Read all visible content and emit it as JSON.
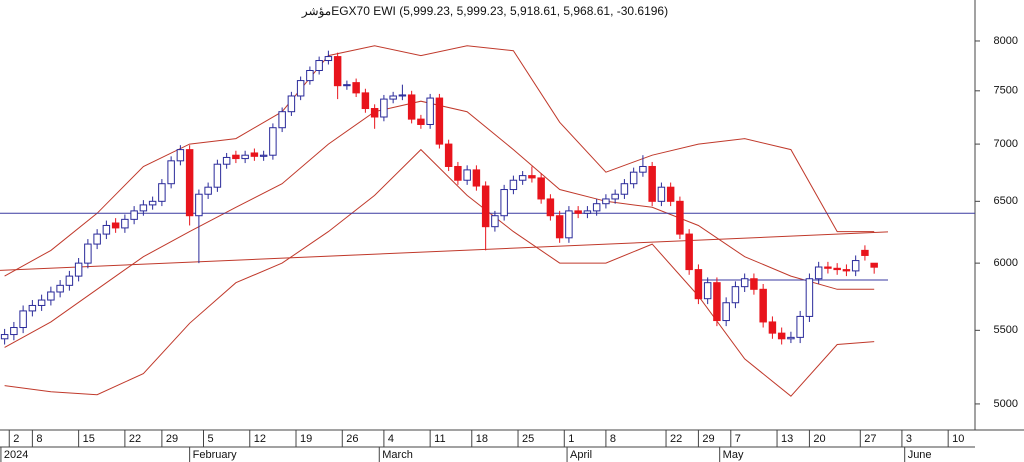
{
  "chart_data": {
    "type": "candlestick",
    "title": "مؤشرEGX70 EWI (5,999.23, 5,999.23, 5,918.61, 5,968.61, -30.6196)",
    "log_scale": true,
    "ylim": [
      4834,
      8436
    ],
    "yticks": [
      5000,
      5500,
      6000,
      6500,
      7000,
      7500,
      8000
    ],
    "xlim": [
      -0.5,
      104.9
    ],
    "xticks": [
      {
        "value": 0.5,
        "label": "2"
      },
      {
        "value": 3,
        "label": "8"
      },
      {
        "value": 8,
        "label": "15"
      },
      {
        "value": 13,
        "label": "22"
      },
      {
        "value": 17,
        "label": "29"
      },
      {
        "value": 21.5,
        "label": "5"
      },
      {
        "value": 26.5,
        "label": "12"
      },
      {
        "value": 31.5,
        "label": "19"
      },
      {
        "value": 36.5,
        "label": "26"
      },
      {
        "value": 41,
        "label": "4"
      },
      {
        "value": 46,
        "label": "11"
      },
      {
        "value": 50.5,
        "label": "18"
      },
      {
        "value": 55.5,
        "label": "25"
      },
      {
        "value": 60.5,
        "label": "1"
      },
      {
        "value": 65,
        "label": "8"
      },
      {
        "value": 71.5,
        "label": "22"
      },
      {
        "value": 75,
        "label": "29"
      },
      {
        "value": 78.5,
        "label": "7"
      },
      {
        "value": 83.5,
        "label": "13"
      },
      {
        "value": 87,
        "label": "20"
      },
      {
        "value": 92.5,
        "label": "27"
      },
      {
        "value": 97,
        "label": "3"
      },
      {
        "value": 102,
        "label": "10"
      }
    ],
    "month_ticks": [
      {
        "value": -0.4,
        "label": "2024"
      },
      {
        "value": 20,
        "label": "February"
      },
      {
        "value": 40.5,
        "label": "March"
      },
      {
        "value": 60.8,
        "label": "April"
      },
      {
        "value": 77.3,
        "label": "May"
      },
      {
        "value": 97.3,
        "label": "June"
      }
    ],
    "up_color": "#2a2a9a",
    "down_color": "#e8141c",
    "open": [
      5440,
      5470,
      5520,
      5640,
      5680,
      5720,
      5780,
      5830,
      5900,
      6000,
      6150,
      6230,
      6320,
      6280,
      6350,
      6420,
      6470,
      6500,
      6650,
      6850,
      6950,
      6380,
      6560,
      6620,
      6820,
      6900,
      6870,
      6920,
      6890,
      6900,
      7150,
      7300,
      7450,
      7600,
      7700,
      7800,
      7840,
      7550,
      7580,
      7480,
      7330,
      7250,
      7420,
      7450,
      7460,
      7230,
      7180,
      7430,
      7000,
      6800,
      6680,
      6770,
      6630,
      6290,
      6380,
      6600,
      6680,
      6720,
      6700,
      6520,
      6380,
      6200,
      6420,
      6400,
      6420,
      6480,
      6520,
      6560,
      6650,
      6750,
      6800,
      6500,
      6620,
      6500,
      6230,
      5950,
      5730,
      5850,
      5570,
      5700,
      5820,
      5880,
      5800,
      5560,
      5480,
      5440,
      5450,
      5600,
      5880,
      5970,
      5960,
      5950,
      5940,
      6100,
      5999.23
    ],
    "high": [
      5510,
      5560,
      5680,
      5720,
      5760,
      5820,
      5870,
      5940,
      6040,
      6190,
      6270,
      6340,
      6360,
      6390,
      6460,
      6510,
      6540,
      6690,
      6890,
      6990,
      6990,
      6600,
      6660,
      6860,
      6920,
      6940,
      6940,
      6960,
      6940,
      7190,
      7340,
      7490,
      7640,
      7740,
      7840,
      7900,
      7880,
      7600,
      7620,
      7520,
      7370,
      7460,
      7490,
      7560,
      7500,
      7270,
      7470,
      7470,
      7040,
      6840,
      6810,
      6810,
      6670,
      6420,
      6640,
      6720,
      6760,
      6800,
      6740,
      6560,
      6420,
      6460,
      6460,
      6460,
      6520,
      6560,
      6600,
      6690,
      6790,
      6900,
      6840,
      6660,
      6660,
      6540,
      6270,
      5990,
      5890,
      5890,
      5740,
      5860,
      5920,
      5920,
      5840,
      5600,
      5520,
      5490,
      5640,
      5920,
      6010,
      6010,
      6000,
      5990,
      6060,
      6140,
      5999.23
    ],
    "low": [
      5400,
      5430,
      5480,
      5600,
      5640,
      5680,
      5740,
      5790,
      5860,
      5960,
      6110,
      6190,
      6240,
      6240,
      6310,
      6380,
      6430,
      6460,
      6610,
      6810,
      6300,
      6000,
      6520,
      6580,
      6780,
      6830,
      6830,
      6850,
      6850,
      6860,
      7110,
      7260,
      7410,
      7560,
      7660,
      7760,
      7420,
      7510,
      7440,
      7290,
      7140,
      7210,
      7380,
      7410,
      7190,
      7140,
      7140,
      6960,
      6760,
      6640,
      6640,
      6590,
      6100,
      6250,
      6340,
      6560,
      6640,
      6660,
      6480,
      6340,
      6160,
      6160,
      6360,
      6360,
      6380,
      6440,
      6480,
      6520,
      6610,
      6710,
      6460,
      6460,
      6460,
      6190,
      5910,
      5690,
      5690,
      5530,
      5530,
      5660,
      5780,
      5760,
      5520,
      5440,
      5400,
      5410,
      5410,
      5560,
      5840,
      5920,
      5910,
      5900,
      5900,
      6020,
      5918.61
    ],
    "close": [
      5470,
      5520,
      5640,
      5680,
      5720,
      5780,
      5830,
      5900,
      6000,
      6150,
      6230,
      6300,
      6280,
      6350,
      6420,
      6470,
      6500,
      6650,
      6850,
      6950,
      6380,
      6560,
      6620,
      6820,
      6880,
      6870,
      6900,
      6890,
      6900,
      7150,
      7300,
      7450,
      7600,
      7700,
      7800,
      7840,
      7550,
      7560,
      7480,
      7330,
      7250,
      7420,
      7450,
      7460,
      7230,
      7180,
      7430,
      7000,
      6800,
      6680,
      6770,
      6630,
      6290,
      6380,
      6600,
      6680,
      6720,
      6700,
      6520,
      6380,
      6200,
      6420,
      6400,
      6420,
      6480,
      6520,
      6560,
      6650,
      6750,
      6800,
      6500,
      6620,
      6500,
      6230,
      5950,
      5730,
      5850,
      5570,
      5700,
      5820,
      5880,
      5800,
      5560,
      5480,
      5440,
      5450,
      5600,
      5880,
      5970,
      5960,
      5950,
      5940,
      6020,
      6060,
      5968.61
    ],
    "bands": {
      "x": [
        0,
        5,
        10,
        15,
        20,
        25,
        30,
        35,
        40,
        45,
        50,
        55,
        60,
        65,
        70,
        75,
        80,
        85,
        90,
        94
      ],
      "color": "#c0392b",
      "series": [
        {
          "values": [
            5900,
            6100,
            6400,
            6800,
            7000,
            7050,
            7300,
            7850,
            7950,
            7850,
            7950,
            7900,
            7200,
            6750,
            6900,
            7000,
            7050,
            6950,
            6250,
            6250
          ]
        },
        {
          "values": [
            5380,
            5560,
            5800,
            6050,
            6250,
            6450,
            6650,
            7000,
            7300,
            7400,
            7300,
            6950,
            6600,
            6500,
            6450,
            6300,
            6050,
            5900,
            5800,
            5800
          ]
        },
        {
          "values": [
            5120,
            5080,
            5060,
            5200,
            5550,
            5850,
            6000,
            6250,
            6550,
            6950,
            6550,
            6250,
            6000,
            6000,
            6150,
            5750,
            5300,
            5050,
            5400,
            5420
          ]
        }
      ]
    },
    "lines": [
      {
        "x": [
          -0.5,
          104.9
        ],
        "values": [
          6400,
          6400
        ],
        "color": "#3a3aa0"
      },
      {
        "x": [
          -0.5,
          95.5
        ],
        "values": [
          5944,
          6248
        ],
        "color": "#c0392b"
      },
      {
        "x": [
          75,
          95.5
        ],
        "values": [
          5870,
          5870
        ],
        "color": "#3a3aa0"
      }
    ]
  }
}
